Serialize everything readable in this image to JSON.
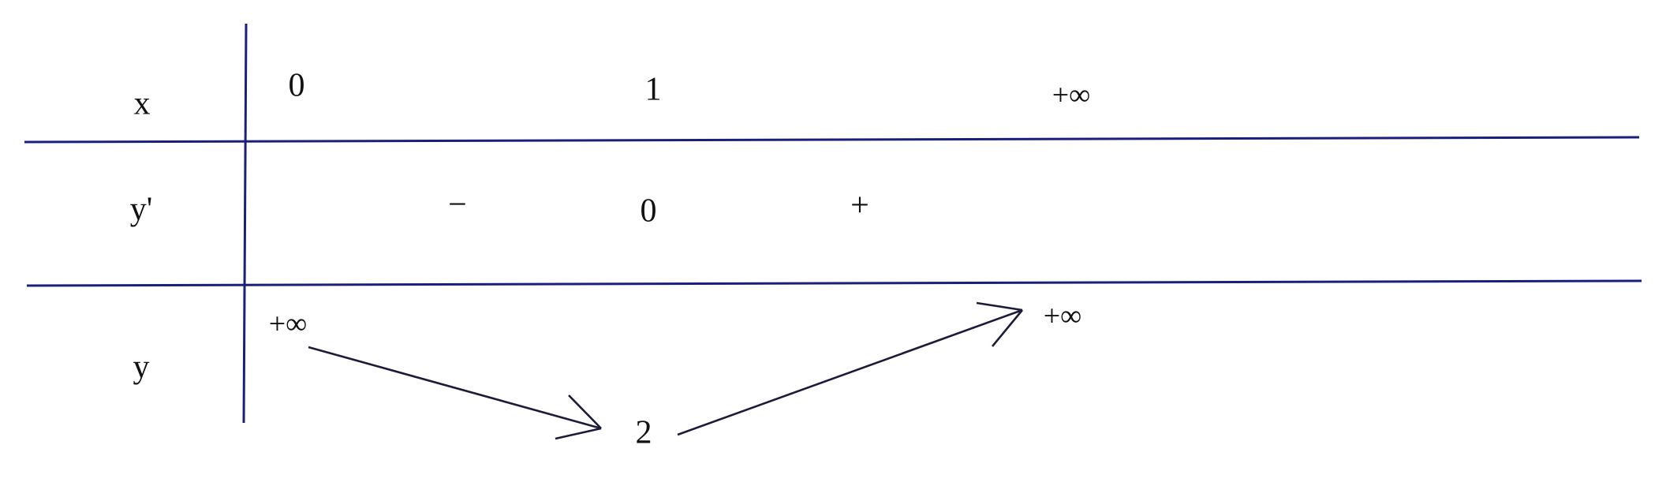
{
  "rows": [
    {
      "label": "x",
      "entries": [
        "0",
        "1",
        "+∞"
      ]
    },
    {
      "label": "y'",
      "entries": [
        "−",
        "0",
        "+"
      ]
    },
    {
      "label": "y",
      "entries": [
        "+∞",
        "2",
        "+∞"
      ]
    }
  ]
}
